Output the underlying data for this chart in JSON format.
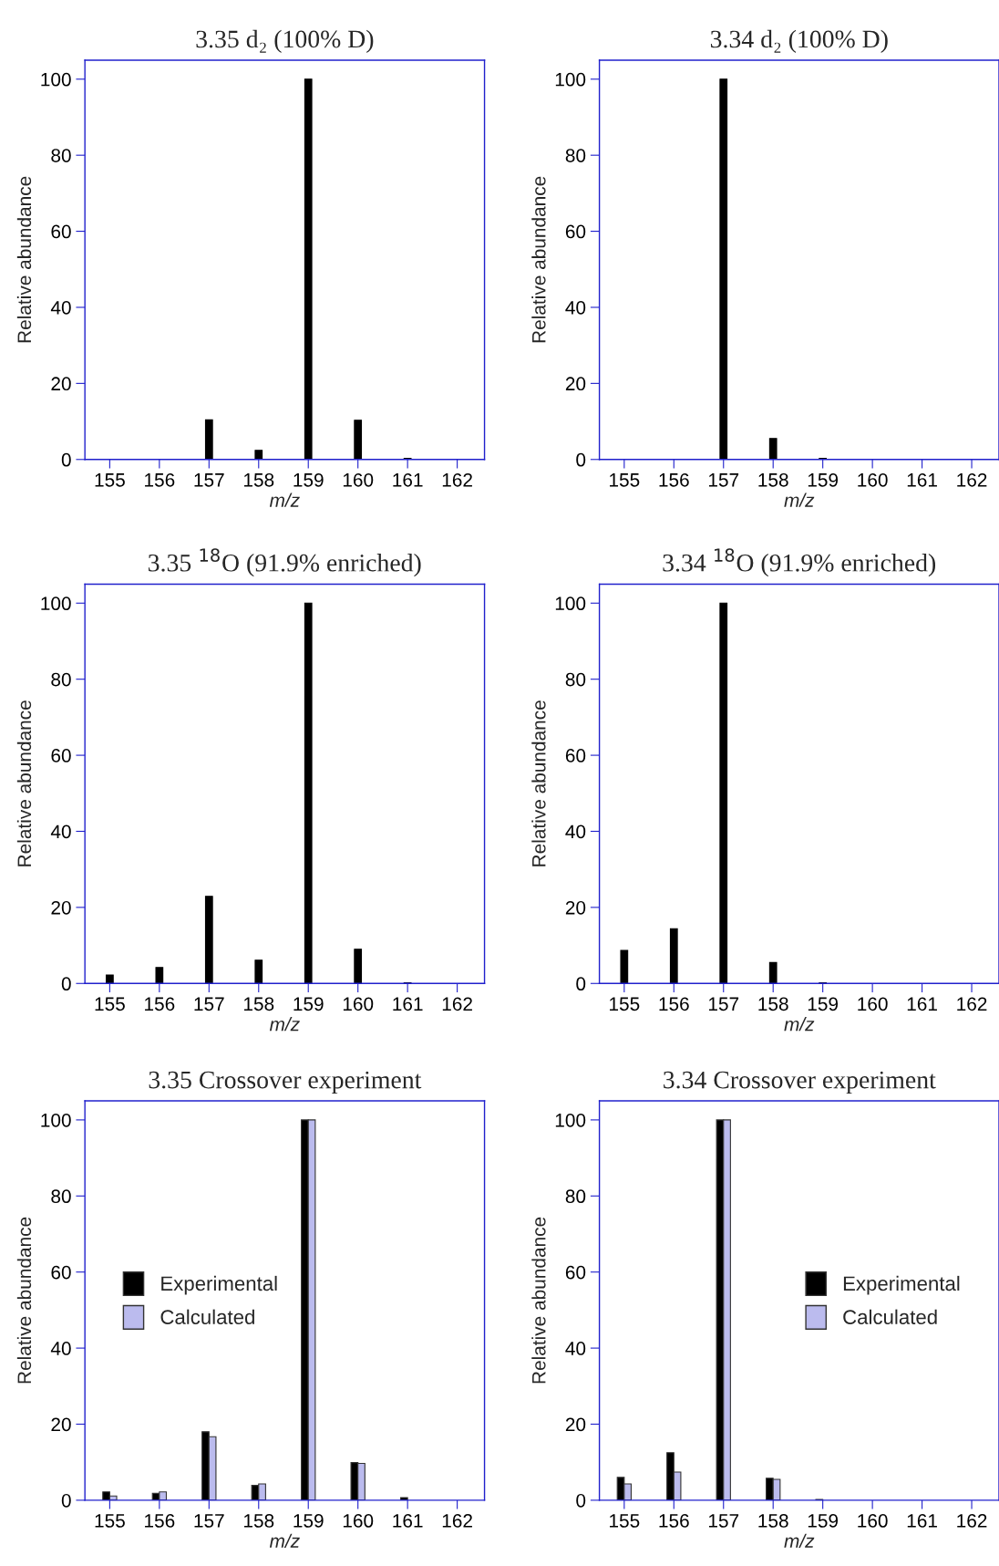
{
  "chart_data": [
    {
      "type": "bar",
      "title": "3.35 d₂ (100% D)",
      "xlabel": "m/z",
      "ylabel": "Relative abundance",
      "categories": [
        "155",
        "156",
        "157",
        "158",
        "159",
        "160",
        "161",
        "162"
      ],
      "ylim": [
        0,
        105
      ],
      "yticks": [
        0,
        20,
        40,
        60,
        80,
        100
      ],
      "grid": false,
      "legend": false,
      "series": [
        {
          "color": "#000000",
          "values": [
            0,
            0,
            10.4,
            2.4,
            100,
            10.3,
            0.3,
            0
          ]
        }
      ]
    },
    {
      "type": "bar",
      "title": "3.34 d₂ (100% D)",
      "xlabel": "m/z",
      "ylabel": "Relative abundance",
      "categories": [
        "155",
        "156",
        "157",
        "158",
        "159",
        "160",
        "161",
        "162"
      ],
      "ylim": [
        0,
        105
      ],
      "yticks": [
        0,
        20,
        40,
        60,
        80,
        100
      ],
      "grid": false,
      "legend": false,
      "series": [
        {
          "color": "#000000",
          "values": [
            0,
            0,
            100,
            5.5,
            0.3,
            0,
            0,
            0
          ]
        }
      ]
    },
    {
      "type": "bar",
      "title": "3.35 $^{18}$O (91.9% enriched)",
      "xlabel": "m/z",
      "ylabel": "Relative abundance",
      "categories": [
        "155",
        "156",
        "157",
        "158",
        "159",
        "160",
        "161",
        "162"
      ],
      "ylim": [
        0,
        105
      ],
      "yticks": [
        0,
        20,
        40,
        60,
        80,
        100
      ],
      "grid": false,
      "legend": false,
      "series": [
        {
          "color": "#000000",
          "values": [
            2.2,
            4.2,
            22.9,
            6.1,
            100,
            9.0,
            0.2,
            0
          ]
        }
      ]
    },
    {
      "type": "bar",
      "title": "3.34 $^{18}$O (91.9% enriched)",
      "xlabel": "m/z",
      "ylabel": "Relative abundance",
      "categories": [
        "155",
        "156",
        "157",
        "158",
        "159",
        "160",
        "161",
        "162"
      ],
      "ylim": [
        0,
        105
      ],
      "yticks": [
        0,
        20,
        40,
        60,
        80,
        100
      ],
      "grid": false,
      "legend": false,
      "series": [
        {
          "color": "#000000",
          "values": [
            8.7,
            14.4,
            100,
            5.5,
            0.2,
            0,
            0,
            0
          ]
        }
      ]
    },
    {
      "type": "bar",
      "title": "3.35 Crossover experiment",
      "xlabel": "m/z",
      "ylabel": "Relative abundance",
      "categories": [
        "155",
        "156",
        "157",
        "158",
        "159",
        "160",
        "161",
        "162"
      ],
      "ylim": [
        0,
        105
      ],
      "yticks": [
        0,
        20,
        40,
        60,
        80,
        100
      ],
      "grid": false,
      "legend": "center left",
      "series": [
        {
          "name": "Experimental",
          "color": "#000000",
          "values": [
            2.2,
            1.8,
            18.0,
            3.9,
            100,
            9.9,
            0.7,
            0
          ]
        },
        {
          "name": "Calculated",
          "color": "#bbbbee",
          "values": [
            1.1,
            2.2,
            16.7,
            4.3,
            100,
            9.7,
            null,
            null
          ]
        }
      ]
    },
    {
      "type": "bar",
      "title": "3.34 Crossover experiment",
      "xlabel": "m/z",
      "ylabel": "Relative abundance",
      "categories": [
        "155",
        "156",
        "157",
        "158",
        "159",
        "160",
        "161",
        "162"
      ],
      "ylim": [
        0,
        105
      ],
      "yticks": [
        0,
        20,
        40,
        60,
        80,
        100
      ],
      "grid": false,
      "legend": "center right",
      "series": [
        {
          "name": "Experimental",
          "color": "#000000",
          "values": [
            6.0,
            12.5,
            100,
            5.8,
            0.2,
            0,
            0,
            0
          ]
        },
        {
          "name": "Calculated",
          "color": "#bbbbee",
          "values": [
            4.3,
            7.4,
            100,
            5.5,
            null,
            0,
            0,
            0
          ]
        }
      ]
    }
  ]
}
